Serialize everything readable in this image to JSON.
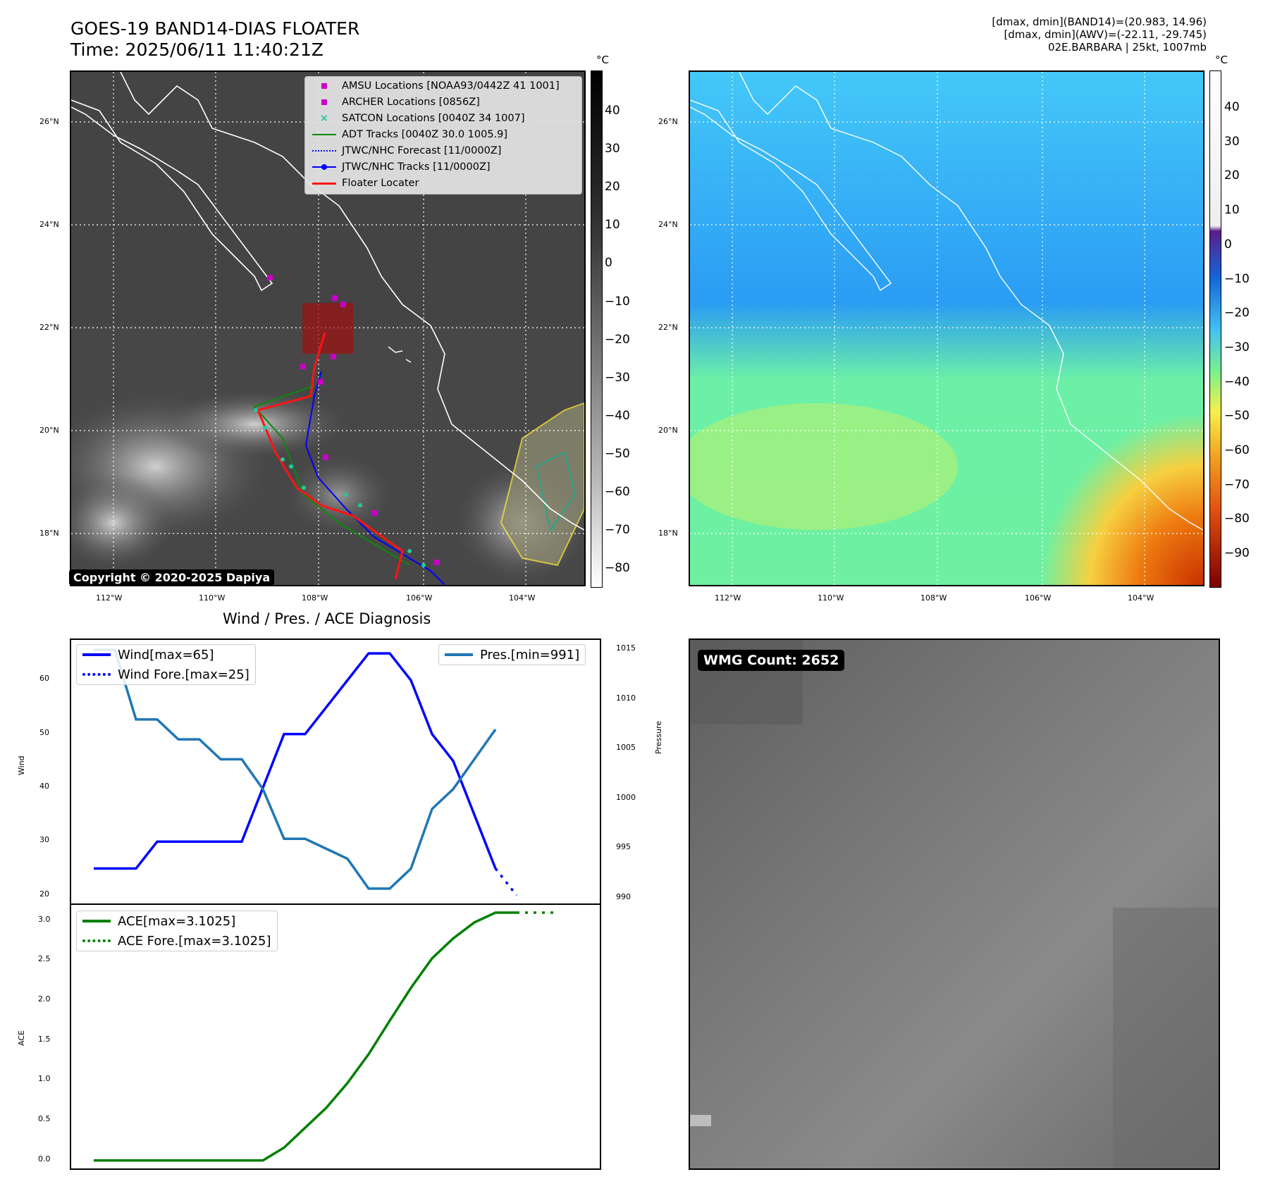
{
  "header": {
    "title_line1": "GOES-19 BAND14-DIAS FLOATER",
    "title_line2": "Time: 2025/06/11 11:40:21Z",
    "info_line1": "[dmax, dmin](BAND14)=(20.983, 14.96)",
    "info_line2": "[dmax, dmin](AWV)=(-22.11, -29.745)",
    "info_line3": "02E.BARBARA | 25kt, 1007mb"
  },
  "map_left": {
    "lat_labels": [
      "26°N",
      "24°N",
      "22°N",
      "20°N",
      "18°N"
    ],
    "lon_labels": [
      "112°W",
      "110°W",
      "108°W",
      "106°W",
      "104°W"
    ],
    "copyright": "Copyright © 2020-2025 Dapiya",
    "colorbar_unit": "°C",
    "colorbar_ticks": [
      "40",
      "30",
      "20",
      "10",
      "0",
      "−10",
      "−20",
      "−30",
      "−40",
      "−50",
      "−60",
      "−70",
      "−80"
    ],
    "legend": [
      {
        "label": "AMSU Locations [NOAA93/0442Z 41 1001]",
        "icon": "magenta-square"
      },
      {
        "label": "ARCHER Locations [0856Z]",
        "icon": "magenta-square"
      },
      {
        "label": "SATCON Locations [0040Z 34 1007]",
        "icon": "cyan-x"
      },
      {
        "label": "ADT Tracks [0040Z 30.0 1005.9]",
        "icon": "green-line"
      },
      {
        "label": "JTWC/NHC Forecast [11/0000Z]",
        "icon": "blue-dotted-line"
      },
      {
        "label": "JTWC/NHC Tracks [11/0000Z]",
        "icon": "blue-line-dot"
      },
      {
        "label": "Floater Locater",
        "icon": "red-line"
      }
    ]
  },
  "map_right": {
    "lat_labels": [
      "26°N",
      "24°N",
      "22°N",
      "20°N",
      "18°N"
    ],
    "lon_labels": [
      "112°W",
      "110°W",
      "108°W",
      "106°W",
      "104°W"
    ],
    "colorbar_unit": "°C",
    "colorbar_ticks": [
      "40",
      "30",
      "20",
      "10",
      "0",
      "−10",
      "−20",
      "−30",
      "−40",
      "−50",
      "−60",
      "−70",
      "−80",
      "−90"
    ]
  },
  "diagnosis_title": "Wind / Pres. / ACE Diagnosis",
  "wmg": {
    "badge": "WMG Count: 2652"
  },
  "colors": {
    "wind": "#0000ff",
    "pressure": "#1f77b4",
    "ace": "#008000"
  },
  "chart_data": [
    {
      "type": "line",
      "title": "Wind / Pres. / ACE Diagnosis",
      "ylabel": "Wind",
      "ylabel_right": "Pressure",
      "ylim": [
        18.5,
        67.5
      ],
      "ylim_right": [
        989.5,
        1016
      ],
      "yticks": [
        20,
        30,
        40,
        50,
        60
      ],
      "yticks_right": [
        990,
        995,
        1000,
        1005,
        1010,
        1015
      ],
      "series": [
        {
          "name": "Wind[max=65]",
          "values": [
            25,
            25,
            25,
            30,
            30,
            30,
            30,
            30,
            40,
            50,
            50,
            55,
            60,
            65,
            65,
            60,
            50,
            45,
            35,
            25
          ]
        },
        {
          "name": "Wind Fore.[max=25]",
          "values": [
            null,
            null,
            null,
            null,
            null,
            null,
            null,
            null,
            null,
            null,
            null,
            null,
            null,
            null,
            null,
            null,
            null,
            null,
            null,
            25,
            20
          ]
        },
        {
          "name": "Pres.[min=991]",
          "values": [
            1015,
            1015,
            1008,
            1008,
            1006,
            1006,
            1004,
            1004,
            1001,
            996,
            996,
            995,
            994,
            991,
            991,
            993,
            999,
            1001,
            1004,
            1007
          ]
        }
      ]
    },
    {
      "type": "line",
      "ylabel": "ACE",
      "ylim": [
        -0.1,
        3.2
      ],
      "yticks": [
        0.0,
        0.5,
        1.0,
        1.5,
        2.0,
        2.5,
        3.0
      ],
      "series": [
        {
          "name": "ACE[max=3.1025]",
          "values": [
            0,
            0,
            0,
            0,
            0,
            0,
            0,
            0,
            0,
            0.16,
            0.41,
            0.66,
            0.97,
            1.33,
            1.75,
            2.16,
            2.53,
            2.78,
            2.98,
            3.1025,
            3.1025
          ]
        },
        {
          "name": "ACE Fore.[max=3.1025]",
          "values": [
            null,
            null,
            null,
            null,
            null,
            null,
            null,
            null,
            null,
            null,
            null,
            null,
            null,
            null,
            null,
            null,
            null,
            null,
            null,
            null,
            3.1025,
            3.1025,
            3.1025
          ]
        }
      ]
    }
  ]
}
